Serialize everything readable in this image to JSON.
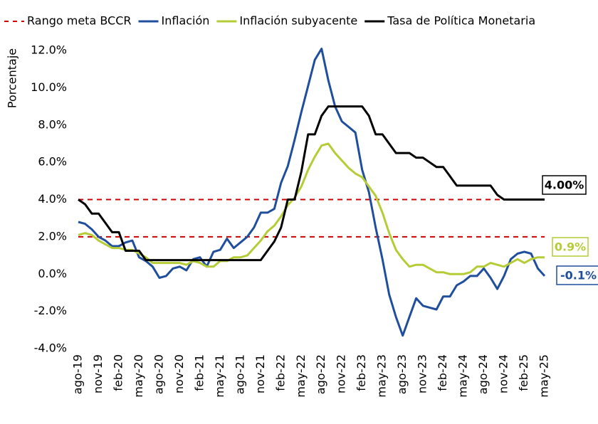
{
  "chart_data": {
    "type": "line",
    "y_label": "Porcentaje",
    "categories": [
      "ago-19",
      null,
      null,
      "nov-19",
      null,
      null,
      "feb-20",
      null,
      null,
      "may-20",
      null,
      null,
      "ago-20",
      null,
      null,
      "nov-20",
      null,
      null,
      "feb-21",
      null,
      null,
      "may-21",
      null,
      null,
      "ago-21",
      null,
      null,
      "nov-21",
      null,
      null,
      "feb-22",
      null,
      null,
      "may-22",
      null,
      null,
      "ago-22",
      null,
      null,
      "nov-22",
      null,
      null,
      "feb-23",
      null,
      null,
      "may-23",
      null,
      null,
      "ago-23",
      null,
      null,
      "nov-23",
      null,
      null,
      "feb-24",
      null,
      null,
      "may-24",
      null,
      null,
      "ago-24",
      null,
      null,
      "nov-24",
      null,
      null,
      "feb-25",
      null,
      null,
      "may-25"
    ],
    "target_range": {
      "name": "Rango meta BCCR",
      "color": "#d00000",
      "values": [
        2,
        4
      ]
    },
    "series": [
      {
        "name": "Inflación",
        "color": "#1f4e9c",
        "end_label": "-0.1%",
        "values": [
          2.8,
          2.7,
          2.4,
          2.0,
          1.8,
          1.5,
          1.5,
          1.7,
          1.8,
          0.9,
          0.7,
          0.4,
          -0.2,
          -0.1,
          0.3,
          0.4,
          0.2,
          0.8,
          0.9,
          0.4,
          1.2,
          1.3,
          1.9,
          1.4,
          1.7,
          2.0,
          2.5,
          3.3,
          3.3,
          3.5,
          4.9,
          5.8,
          7.2,
          8.7,
          10.1,
          11.5,
          12.1,
          10.4,
          9.0,
          8.2,
          7.9,
          7.6,
          5.6,
          4.4,
          2.5,
          0.8,
          -1.1,
          -2.3,
          -3.3,
          -2.3,
          -1.3,
          -1.7,
          -1.8,
          -1.9,
          -1.2,
          -1.2,
          -0.6,
          -0.4,
          -0.1,
          -0.1,
          0.3,
          -0.2,
          -0.8,
          -0.1,
          0.8,
          1.1,
          1.2,
          1.1,
          0.3,
          -0.1
        ]
      },
      {
        "name": "Inflación subyacente",
        "color": "#b5cc36",
        "end_label": "0.9%",
        "values": [
          2.1,
          2.2,
          2.1,
          1.8,
          1.6,
          1.4,
          1.4,
          1.3,
          1.3,
          1.1,
          0.9,
          0.6,
          0.6,
          0.6,
          0.6,
          0.6,
          0.5,
          0.7,
          0.6,
          0.4,
          0.4,
          0.7,
          0.7,
          0.9,
          0.9,
          1.0,
          1.4,
          1.8,
          2.3,
          2.6,
          3.1,
          3.7,
          4.1,
          4.7,
          5.6,
          6.3,
          6.9,
          7.0,
          6.5,
          6.1,
          5.7,
          5.4,
          5.2,
          4.7,
          4.2,
          3.3,
          2.2,
          1.3,
          0.8,
          0.4,
          0.5,
          0.5,
          0.3,
          0.1,
          0.1,
          0.0,
          0.0,
          0.0,
          0.1,
          0.4,
          0.4,
          0.6,
          0.5,
          0.4,
          0.6,
          0.8,
          0.6,
          0.8,
          0.9,
          0.9
        ]
      },
      {
        "name": "Tasa de Política Monetaria",
        "color": "#000000",
        "end_label": "4.00%",
        "values": [
          4.0,
          3.75,
          3.25,
          3.25,
          2.75,
          2.25,
          2.25,
          1.25,
          1.25,
          1.25,
          0.75,
          0.75,
          0.75,
          0.75,
          0.75,
          0.75,
          0.75,
          0.75,
          0.75,
          0.75,
          0.75,
          0.75,
          0.75,
          0.75,
          0.75,
          0.75,
          0.75,
          0.75,
          1.25,
          1.75,
          2.5,
          4.0,
          4.0,
          5.5,
          7.5,
          7.5,
          8.5,
          9.0,
          9.0,
          9.0,
          9.0,
          9.0,
          9.0,
          8.5,
          7.5,
          7.5,
          7.0,
          6.5,
          6.5,
          6.5,
          6.25,
          6.25,
          6.0,
          5.75,
          5.75,
          5.25,
          4.75,
          4.75,
          4.75,
          4.75,
          4.75,
          4.75,
          4.25,
          4.0,
          4.0,
          4.0,
          4.0,
          4.0,
          4.0,
          4.0
        ]
      }
    ],
    "ylim": [
      -4,
      12.5
    ],
    "yticks": [
      {
        "value": -4,
        "label": "-4.0%"
      },
      {
        "value": -2,
        "label": "-2.0%"
      },
      {
        "value": 0,
        "label": "0.0%"
      },
      {
        "value": 2,
        "label": "2.0%"
      },
      {
        "value": 4,
        "label": "4.0%"
      },
      {
        "value": 6,
        "label": "6.0%"
      },
      {
        "value": 8,
        "label": "8.0%"
      },
      {
        "value": 10,
        "label": "10.0%"
      },
      {
        "value": 12,
        "label": "12.0%"
      }
    ],
    "grid": false
  }
}
